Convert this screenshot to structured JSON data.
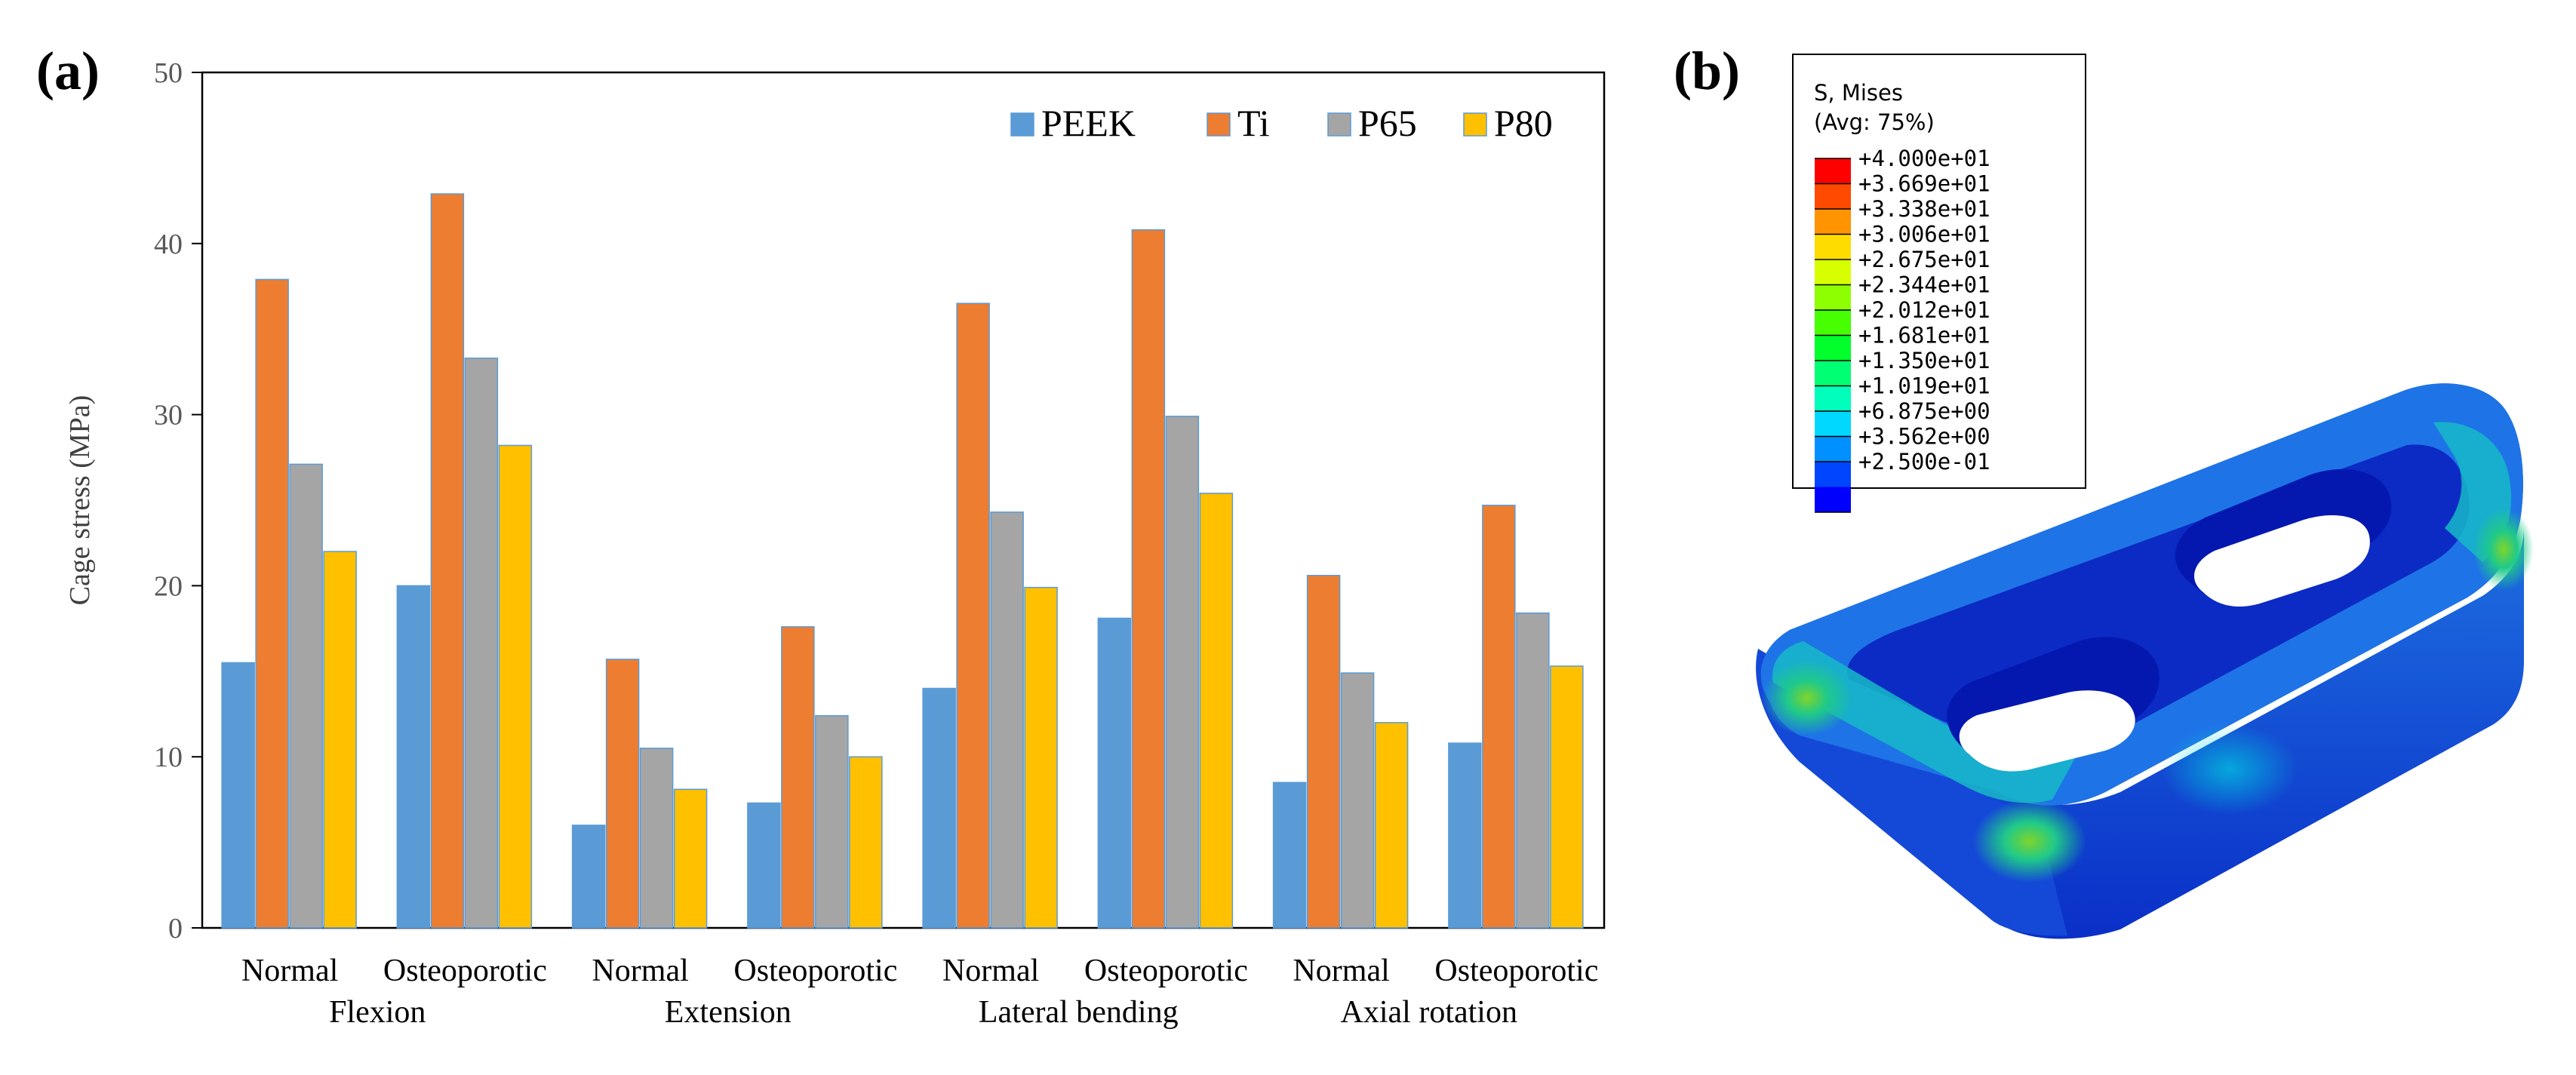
{
  "panels": {
    "a_label": "(a)",
    "b_label": "(b)"
  },
  "chart_data": {
    "type": "bar",
    "ylabel": "Cage stress (MPa)",
    "ylim": [
      0,
      50
    ],
    "yticks": [
      0,
      10,
      20,
      30,
      40,
      50
    ],
    "grid": false,
    "legend_position": "top-right",
    "categories": [
      "Normal",
      "Osteoporotic",
      "Normal",
      "Osteoporotic",
      "Normal",
      "Osteoporotic",
      "Normal",
      "Osteoporotic"
    ],
    "groups": [
      "Flexion",
      "Extension",
      "Lateral bending",
      "Axial rotation"
    ],
    "series": [
      {
        "name": "PEEK",
        "color": "#5B9BD5",
        "values": [
          15.5,
          20.0,
          6.0,
          7.3,
          14.0,
          18.1,
          8.5,
          10.8
        ]
      },
      {
        "name": "Ti",
        "color": "#ED7D31",
        "values": [
          37.9,
          42.9,
          15.7,
          17.6,
          36.5,
          40.8,
          20.6,
          24.7
        ]
      },
      {
        "name": "P65",
        "color": "#A5A5A5",
        "values": [
          27.1,
          33.3,
          10.5,
          12.4,
          24.3,
          29.9,
          14.9,
          18.4
        ]
      },
      {
        "name": "P80",
        "color": "#FFC000",
        "values": [
          22.0,
          28.2,
          8.1,
          10.0,
          19.9,
          25.4,
          12.0,
          15.3
        ]
      }
    ]
  },
  "colorbar": {
    "title_line1": "S, Mises",
    "title_line2": "(Avg: 75%)",
    "labels": [
      "+4.000e+01",
      "+3.669e+01",
      "+3.338e+01",
      "+3.006e+01",
      "+2.675e+01",
      "+2.344e+01",
      "+2.012e+01",
      "+1.681e+01",
      "+1.350e+01",
      "+1.019e+01",
      "+6.875e+00",
      "+3.562e+00",
      "+2.500e-01"
    ],
    "colors": [
      "#FF0000",
      "#FF4A00",
      "#FF9400",
      "#FFDC00",
      "#D8FF00",
      "#8EFF00",
      "#46FF00",
      "#00FF2B",
      "#00FF73",
      "#00FFBA",
      "#00D8FF",
      "#0090FF",
      "#0046FF",
      "#0000FF"
    ]
  }
}
